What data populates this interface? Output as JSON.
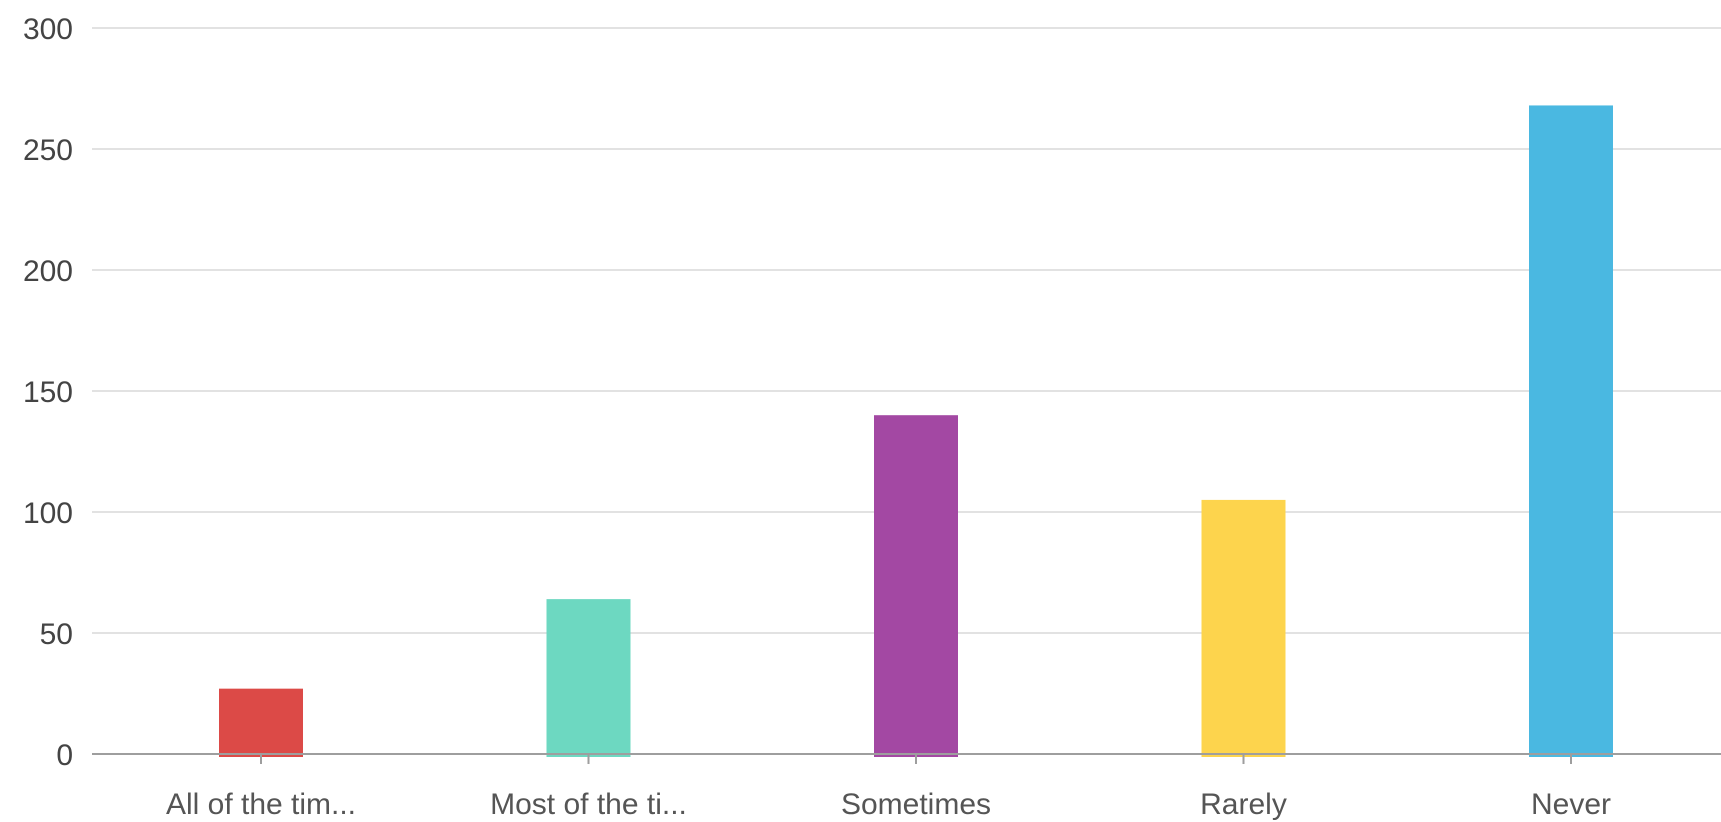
{
  "chart_data": {
    "type": "bar",
    "categories": [
      "All of the tim...",
      "Most of the ti...",
      "Sometimes",
      "Rarely",
      "Never"
    ],
    "values": [
      27,
      64,
      140,
      105,
      268
    ],
    "colors": [
      "#dc4a47",
      "#6dd8c1",
      "#a348a3",
      "#fdd44d",
      "#4ab8e1"
    ],
    "ylim": [
      0,
      300
    ],
    "yticks": [
      0,
      50,
      100,
      150,
      200,
      250,
      300
    ],
    "grid": true,
    "legend": "none"
  }
}
